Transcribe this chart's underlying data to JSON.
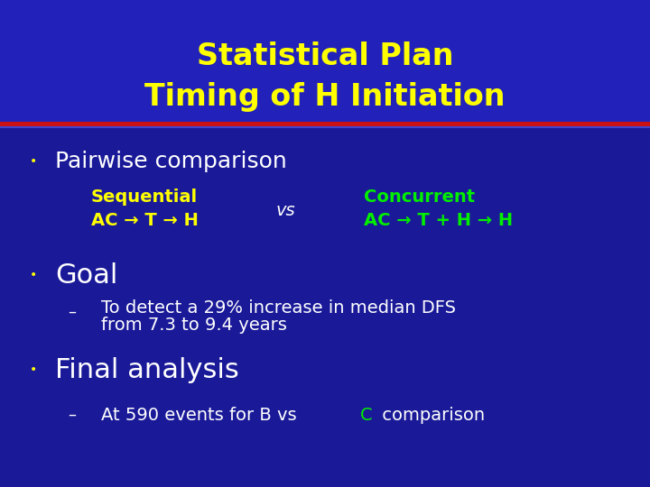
{
  "title_line1": "Statistical Plan",
  "title_line2": "Timing of H Initiation",
  "title_color": "#FFFF00",
  "bg_color": "#1a1a99",
  "title_bg_color": "#2222bb",
  "divider_color_top": "#cc1111",
  "divider_color_bottom": "#4444cc",
  "bullet_color": "#FFFF00",
  "bullet1": "Pairwise comparison",
  "seq_label": "Sequential",
  "seq_formula": "AC → T → H",
  "seq_color": "#FFFF00",
  "vs_text": "vs",
  "vs_color": "#ffffff",
  "conc_label": "Concurrent",
  "conc_formula": "AC → T + H → H",
  "conc_color": "#00ee00",
  "bullet2": "Goal",
  "goal_text_line1": "To detect a 29% increase in median DFS",
  "goal_text_line2": "from 7.3 to 9.4 years",
  "goal_color": "#ffffff",
  "bullet3": "Final analysis",
  "final_text_part1": "At 590 events for B vs ",
  "final_text_C": "C",
  "final_text_part2": " comparison",
  "final_color": "#ffffff",
  "final_C_color": "#00ee00",
  "body_color": "#ffffff",
  "title_fontsize": 24,
  "bullet_main_fontsize": 18,
  "bullet_label_fontsize": 14,
  "bullet_sub_fontsize": 14,
  "goal_fontsize": 22
}
